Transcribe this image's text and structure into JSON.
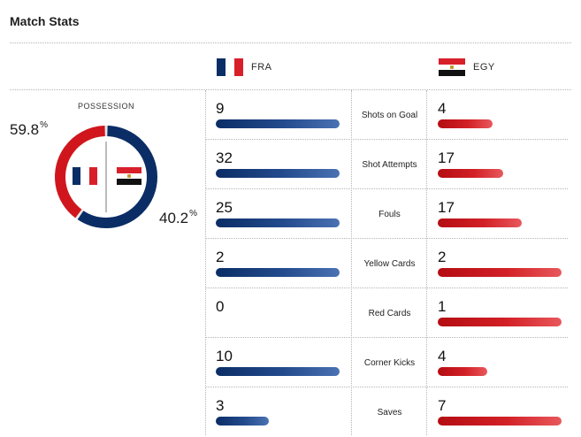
{
  "title": "Match Stats",
  "teams": {
    "home": {
      "abbr": "FRA",
      "flag_icon": "france-flag-icon",
      "color": "#0b2d66"
    },
    "away": {
      "abbr": "EGY",
      "flag_icon": "egypt-flag-icon",
      "color": "#c8161c"
    }
  },
  "possession": {
    "label": "POSSESSION",
    "home_value": "59.8",
    "away_value": "40.2",
    "unit": "%",
    "home_fraction": 0.598
  },
  "stats": [
    {
      "label": "Shots on Goal",
      "home": "9",
      "away": "4",
      "home_bar": 1.0,
      "away_bar": 0.444
    },
    {
      "label": "Shot Attempts",
      "home": "32",
      "away": "17",
      "home_bar": 1.0,
      "away_bar": 0.531
    },
    {
      "label": "Fouls",
      "home": "25",
      "away": "17",
      "home_bar": 1.0,
      "away_bar": 0.68
    },
    {
      "label": "Yellow Cards",
      "home": "2",
      "away": "2",
      "home_bar": 1.0,
      "away_bar": 1.0
    },
    {
      "label": "Red Cards",
      "home": "0",
      "away": "1",
      "home_bar": 0,
      "away_bar": 1.0
    },
    {
      "label": "Corner Kicks",
      "home": "10",
      "away": "4",
      "home_bar": 1.0,
      "away_bar": 0.4
    },
    {
      "label": "Saves",
      "home": "3",
      "away": "7",
      "home_bar": 0.429,
      "away_bar": 1.0
    }
  ]
}
